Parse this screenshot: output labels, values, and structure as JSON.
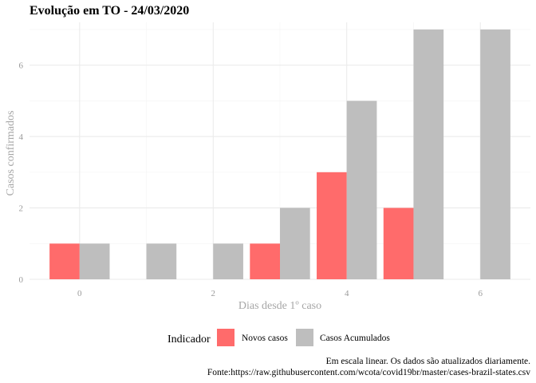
{
  "chart_data": {
    "type": "bar",
    "title": "Evolução em TO  -  24/03/2020",
    "xlabel": "Dias desde 1º caso",
    "ylabel": "Casos confirmados",
    "x": [
      0,
      1,
      2,
      3,
      4,
      5,
      6
    ],
    "xticks": [
      0,
      2,
      4,
      6
    ],
    "yticks": [
      0,
      2,
      4,
      6
    ],
    "xlim": [
      -0.75,
      6.75
    ],
    "ylim": [
      0,
      7.2
    ],
    "grid": true,
    "legend_position": "bottom",
    "series": [
      {
        "name": "Novos casos",
        "color": "#ff6b6b",
        "values": [
          1,
          0,
          0,
          1,
          3,
          2,
          0
        ]
      },
      {
        "name": "Casos Acumulados",
        "color": "#bebebe",
        "values": [
          1,
          1,
          1,
          2,
          5,
          7,
          7
        ]
      }
    ],
    "legend_title": "Indicador",
    "caption": [
      "Em escala linear. Os dados são atualizados diariamente.",
      "Fonte:https://raw.githubusercontent.com/wcota/covid19br/master/cases-brazil-states.csv"
    ]
  }
}
